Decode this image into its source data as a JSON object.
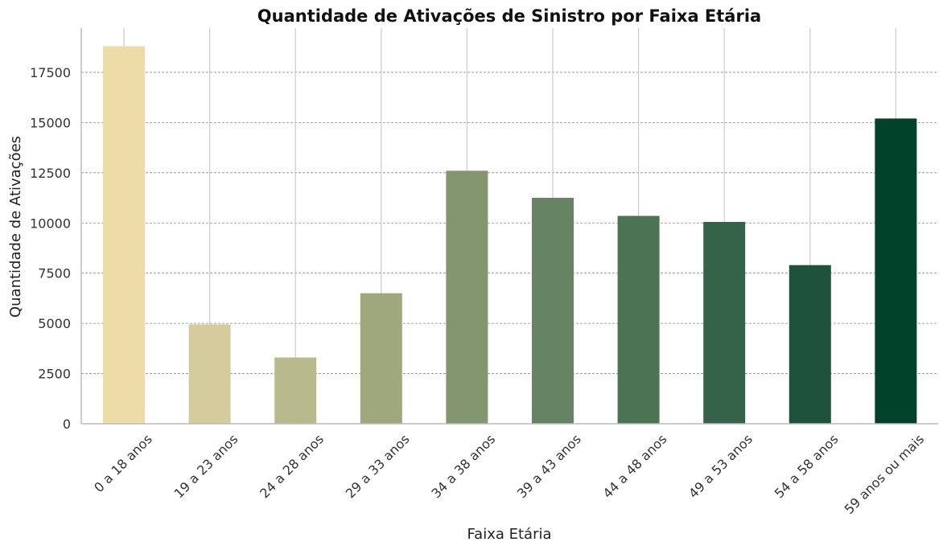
{
  "chart_data": {
    "type": "bar",
    "title": "Quantidade de Ativações de Sinistro por Faixa Etária",
    "xlabel": "Faixa Etária",
    "ylabel": "Quantidade de Ativações",
    "categories": [
      "0 a 18 anos",
      "19 a 23 anos",
      "24 a 28 anos",
      "29 a 33 anos",
      "34 a 38 anos",
      "39 a 43 anos",
      "44 a 48 anos",
      "49 a 53 anos",
      "54 a 58 anos",
      "59 anos ou mais"
    ],
    "values": [
      18800,
      4950,
      3300,
      6500,
      12600,
      11250,
      10350,
      10050,
      7900,
      15200
    ],
    "colors": [
      "#eddca8",
      "#d4cc9c",
      "#b8ba8d",
      "#9ea87c",
      "#83966f",
      "#668463",
      "#4b7454",
      "#35634a",
      "#1e523a",
      "#00432a"
    ],
    "yticks": [
      0,
      2500,
      5000,
      7500,
      10000,
      12500,
      15000,
      17500
    ],
    "ylim": [
      0,
      19700
    ],
    "grid": true,
    "legend": "none"
  }
}
